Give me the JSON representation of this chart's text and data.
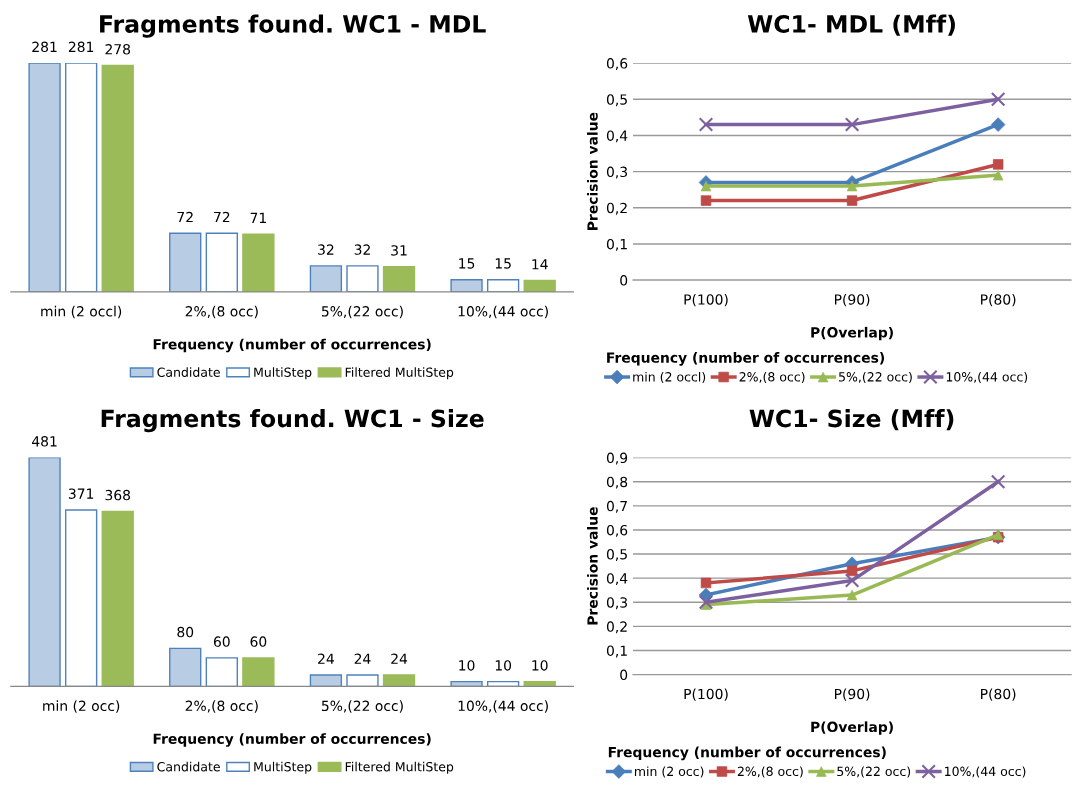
{
  "chart_data": [
    {
      "type": "bar",
      "title": "Fragments found. WC1 - MDL",
      "xlabel": "Frequency (number of occurrences)",
      "categories": [
        "min (2 occl)",
        "2%,(8 occ)",
        "5%,(22 occ)",
        "10%,(44 occ)"
      ],
      "data_labels": true,
      "legend": "bottom",
      "ylim": [
        0,
        281
      ],
      "series": [
        {
          "name": "Candidate",
          "color": "#b8cce4",
          "values": [
            281,
            72,
            32,
            15
          ]
        },
        {
          "name": "MultiStep",
          "color": "#ffffff",
          "values": [
            281,
            72,
            32,
            15
          ]
        },
        {
          "name": "Filtered MultiStep",
          "color": "#9bbb59",
          "values": [
            278,
            71,
            31,
            14
          ]
        }
      ]
    },
    {
      "type": "line",
      "title": "WC1- MDL (Mff)",
      "xlabel": "P(Overlap)",
      "ylabel": "Precision value",
      "legend_title": "Frequency (number of occurrences)",
      "legend": "bottom",
      "grid": "y",
      "categories": [
        "P(100)",
        "P(90)",
        "P(80)"
      ],
      "ylim": [
        0,
        0.6
      ],
      "yticks": [
        0,
        {
          "value": 0.1,
          "label": "0,1"
        },
        {
          "value": 0.2,
          "label": "0,2"
        },
        {
          "value": 0.3,
          "label": "0,3"
        },
        {
          "value": 0.4,
          "label": "0,4"
        },
        {
          "value": 0.5,
          "label": "0,5"
        },
        {
          "value": 0.6,
          "label": "0,6"
        }
      ],
      "series": [
        {
          "name": "min (2 occl)",
          "color": "#4a7ebb",
          "marker": "diamond",
          "values": [
            0.27,
            0.27,
            0.43
          ]
        },
        {
          "name": "2%,(8 occ)",
          "color": "#be4b48",
          "marker": "square",
          "values": [
            0.22,
            0.22,
            0.32
          ]
        },
        {
          "name": "5%,(22 occ)",
          "color": "#98b954",
          "marker": "triangle",
          "values": [
            0.26,
            0.26,
            0.29
          ]
        },
        {
          "name": "10%,(44 occ)",
          "color": "#7d60a0",
          "marker": "cross",
          "values": [
            0.43,
            0.43,
            0.5
          ]
        }
      ]
    },
    {
      "type": "bar",
      "title": "Fragments found. WC1 - Size",
      "xlabel": "Frequency (number of occurrences)",
      "categories": [
        "min (2 occ)",
        "2%,(8 occ)",
        "5%,(22 occ)",
        "10%,(44 occ)"
      ],
      "data_labels": true,
      "legend": "bottom",
      "ylim": [
        0,
        481
      ],
      "series": [
        {
          "name": "Candidate",
          "color": "#b8cce4",
          "values": [
            481,
            80,
            24,
            10
          ]
        },
        {
          "name": "MultiStep",
          "color": "#ffffff",
          "values": [
            371,
            60,
            24,
            10
          ]
        },
        {
          "name": "Filtered MultiStep",
          "color": "#9bbb59",
          "values": [
            368,
            60,
            24,
            10
          ]
        }
      ]
    },
    {
      "type": "line",
      "title": "WC1- Size (Mff)",
      "xlabel": "P(Overlap)",
      "ylabel": "Precision value",
      "legend_title": "Frequency (number of occurrences)",
      "legend": "bottom",
      "grid": "y",
      "categories": [
        "P(100)",
        "P(90)",
        "P(80)"
      ],
      "ylim": [
        0,
        0.9
      ],
      "yticks": [
        0,
        {
          "value": 0.1,
          "label": "0,1"
        },
        {
          "value": 0.2,
          "label": "0,2"
        },
        {
          "value": 0.3,
          "label": "0,3"
        },
        {
          "value": 0.4,
          "label": "0,4"
        },
        {
          "value": 0.5,
          "label": "0,5"
        },
        {
          "value": 0.6,
          "label": "0,6"
        },
        {
          "value": 0.7,
          "label": "0,7"
        },
        {
          "value": 0.8,
          "label": "0,8"
        },
        {
          "value": 0.9,
          "label": "0,9"
        }
      ],
      "series": [
        {
          "name": "min (2 occ)",
          "color": "#4a7ebb",
          "marker": "diamond",
          "values": [
            0.33,
            0.46,
            0.57
          ]
        },
        {
          "name": "2%,(8 occ)",
          "color": "#be4b48",
          "marker": "square",
          "values": [
            0.38,
            0.43,
            0.57
          ]
        },
        {
          "name": "5%,(22 occ)",
          "color": "#98b954",
          "marker": "triangle",
          "values": [
            0.29,
            0.33,
            0.58
          ]
        },
        {
          "name": "10%,(44 occ)",
          "color": "#7d60a0",
          "marker": "cross",
          "values": [
            0.3,
            0.39,
            0.8
          ]
        }
      ]
    }
  ]
}
